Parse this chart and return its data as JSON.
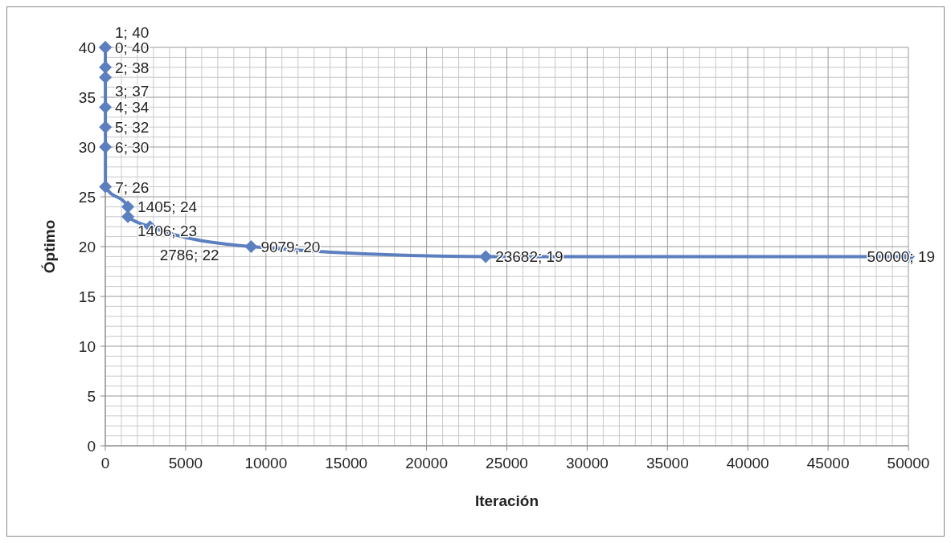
{
  "chart_data": {
    "type": "line",
    "xlabel": "Iteración",
    "ylabel": "Óptimo",
    "series": [
      {
        "color": "#5b7fbf",
        "x": [
          0,
          1,
          2,
          3,
          4,
          5,
          6,
          7,
          1405,
          1406,
          2786,
          9079,
          23682,
          50000
        ],
        "values": [
          40,
          40,
          38,
          37,
          34,
          32,
          30,
          26,
          24,
          23,
          22,
          20,
          19,
          19
        ],
        "value_labels": [
          "0; 40",
          "1; 40",
          "2; 38",
          "3; 37",
          "4; 34",
          "5; 32",
          "6; 30",
          "7; 26",
          "1405; 24",
          "1406; 23",
          "2786; 22",
          "9079; 20",
          "23682; 19",
          "50000; 19"
        ]
      }
    ],
    "xlim": [
      0,
      50000
    ],
    "xticks": [
      0,
      5000,
      10000,
      15000,
      20000,
      25000,
      30000,
      35000,
      40000,
      45000,
      50000
    ],
    "ylim": [
      0,
      40
    ],
    "yticks": [
      0,
      5,
      10,
      15,
      20,
      25,
      30,
      35,
      40
    ],
    "grid": true,
    "marker": "diamond",
    "line_style": "solid"
  }
}
